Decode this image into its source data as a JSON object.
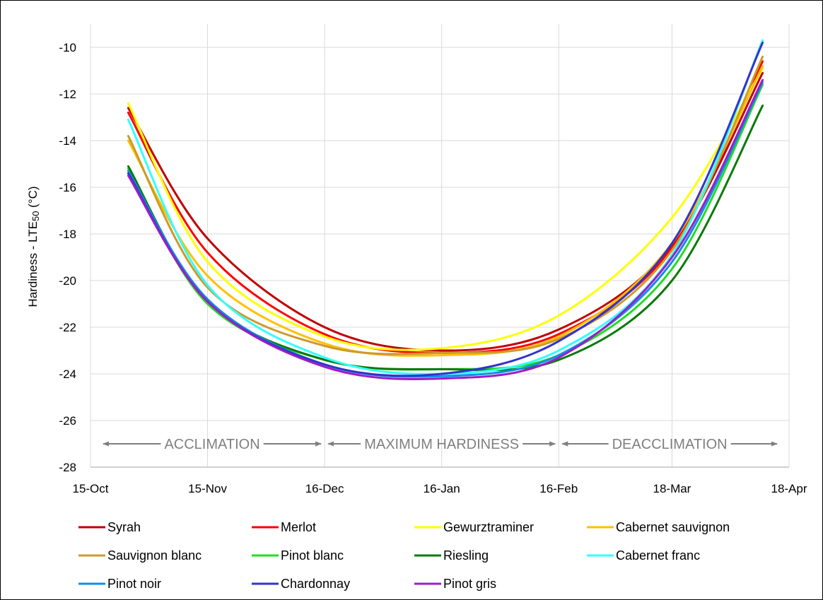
{
  "chart_data": {
    "type": "line",
    "title": "",
    "xlabel": "",
    "ylabel": "Hardiness - LTE50 (°C)",
    "ylabel_parts": {
      "prefix": "Hardiness - LTE",
      "subscript": "50",
      "suffix": " (°C)"
    },
    "x_ticks": [
      "15-Oct",
      "15-Nov",
      "16-Dec",
      "16-Jan",
      "16-Feb",
      "18-Mar",
      "18-Apr"
    ],
    "y_ticks": [
      "-10",
      "-12",
      "-14",
      "-16",
      "-18",
      "-20",
      "-22",
      "-24",
      "-26",
      "-28"
    ],
    "xlim": [
      "15-Oct",
      "18-Apr"
    ],
    "ylim": [
      -28,
      -9
    ],
    "grid": true,
    "legend_position": "bottom",
    "phases": [
      {
        "label": "ACCLIMATION",
        "from": "15-Oct",
        "to": "16-Dec"
      },
      {
        "label": "MAXIMUM HARDINESS",
        "from": "16-Dec",
        "to": "16-Feb"
      },
      {
        "label": "DEACCLIMATION",
        "from": "16-Feb",
        "to": "18-Apr"
      }
    ],
    "phase_y": -27,
    "series": [
      {
        "name": "Syrah",
        "color": "#c00000",
        "points": [
          [
            "25-Oct",
            -12.6
          ],
          [
            "15-Nov",
            -18.2
          ],
          [
            "16-Dec",
            -22.0
          ],
          [
            "16-Jan",
            -23.0
          ],
          [
            "16-Feb",
            -22.1
          ],
          [
            "18-Mar",
            -18.5
          ],
          [
            "11-Apr",
            -11.1
          ]
        ]
      },
      {
        "name": "Merlot",
        "color": "#ff0000",
        "points": [
          [
            "25-Oct",
            -12.8
          ],
          [
            "15-Nov",
            -18.8
          ],
          [
            "16-Dec",
            -22.3
          ],
          [
            "16-Jan",
            -23.1
          ],
          [
            "16-Feb",
            -22.3
          ],
          [
            "18-Mar",
            -18.6
          ],
          [
            "11-Apr",
            -10.6
          ]
        ]
      },
      {
        "name": "Gewurztraminer",
        "color": "#ffff00",
        "points": [
          [
            "25-Oct",
            -12.4
          ],
          [
            "15-Nov",
            -19.2
          ],
          [
            "16-Dec",
            -22.4
          ],
          [
            "16-Jan",
            -22.9
          ],
          [
            "16-Feb",
            -21.5
          ],
          [
            "18-Mar",
            -17.3
          ],
          [
            "11-Apr",
            -10.9
          ]
        ]
      },
      {
        "name": "Cabernet sauvignon",
        "color": "#ffc000",
        "points": [
          [
            "25-Oct",
            -14.0
          ],
          [
            "15-Nov",
            -19.8
          ],
          [
            "16-Dec",
            -22.7
          ],
          [
            "16-Jan",
            -23.2
          ],
          [
            "16-Feb",
            -22.4
          ],
          [
            "18-Mar",
            -18.4
          ],
          [
            "11-Apr",
            -10.8
          ]
        ]
      },
      {
        "name": "Sauvignon blanc",
        "color": "#cc9a2b",
        "points": [
          [
            "25-Oct",
            -13.8
          ],
          [
            "15-Nov",
            -20.3
          ],
          [
            "16-Dec",
            -22.8
          ],
          [
            "16-Jan",
            -23.1
          ],
          [
            "16-Feb",
            -22.5
          ],
          [
            "18-Mar",
            -18.7
          ],
          [
            "11-Apr",
            -10.4
          ]
        ]
      },
      {
        "name": "Pinot blanc",
        "color": "#22dd22",
        "points": [
          [
            "25-Oct",
            -15.2
          ],
          [
            "15-Nov",
            -21.0
          ],
          [
            "16-Dec",
            -23.4
          ],
          [
            "16-Jan",
            -23.8
          ],
          [
            "16-Feb",
            -23.2
          ],
          [
            "18-Mar",
            -19.5
          ],
          [
            "11-Apr",
            -11.6
          ]
        ]
      },
      {
        "name": "Riesling",
        "color": "#0a7a0a",
        "points": [
          [
            "25-Oct",
            -15.1
          ],
          [
            "15-Nov",
            -20.9
          ],
          [
            "16-Dec",
            -23.4
          ],
          [
            "16-Jan",
            -23.8
          ],
          [
            "16-Feb",
            -23.4
          ],
          [
            "18-Mar",
            -20.0
          ],
          [
            "11-Apr",
            -12.5
          ]
        ]
      },
      {
        "name": "Cabernet franc",
        "color": "#33ffff",
        "points": [
          [
            "25-Oct",
            -13.1
          ],
          [
            "15-Nov",
            -20.2
          ],
          [
            "16-Dec",
            -23.3
          ],
          [
            "16-Jan",
            -24.0
          ],
          [
            "16-Feb",
            -23.0
          ],
          [
            "18-Mar",
            -18.9
          ],
          [
            "11-Apr",
            -9.7
          ]
        ]
      },
      {
        "name": "Pinot noir",
        "color": "#0f8ee8",
        "points": [
          [
            "25-Oct",
            -15.3
          ],
          [
            "15-Nov",
            -20.8
          ],
          [
            "16-Dec",
            -23.6
          ],
          [
            "16-Jan",
            -24.1
          ],
          [
            "16-Feb",
            -23.2
          ],
          [
            "18-Mar",
            -19.2
          ],
          [
            "11-Apr",
            -11.5
          ]
        ]
      },
      {
        "name": "Chardonnay",
        "color": "#3333cc",
        "points": [
          [
            "25-Oct",
            -15.4
          ],
          [
            "15-Nov",
            -20.9
          ],
          [
            "16-Dec",
            -23.6
          ],
          [
            "16-Jan",
            -24.0
          ],
          [
            "16-Feb",
            -22.6
          ],
          [
            "18-Mar",
            -18.4
          ],
          [
            "11-Apr",
            -9.8
          ]
        ]
      },
      {
        "name": "Pinot gris",
        "color": "#9b1fc4",
        "points": [
          [
            "25-Oct",
            -15.5
          ],
          [
            "15-Nov",
            -20.9
          ],
          [
            "16-Dec",
            -23.7
          ],
          [
            "16-Jan",
            -24.2
          ],
          [
            "16-Feb",
            -23.3
          ],
          [
            "18-Mar",
            -19.0
          ],
          [
            "11-Apr",
            -11.4
          ]
        ]
      }
    ]
  }
}
